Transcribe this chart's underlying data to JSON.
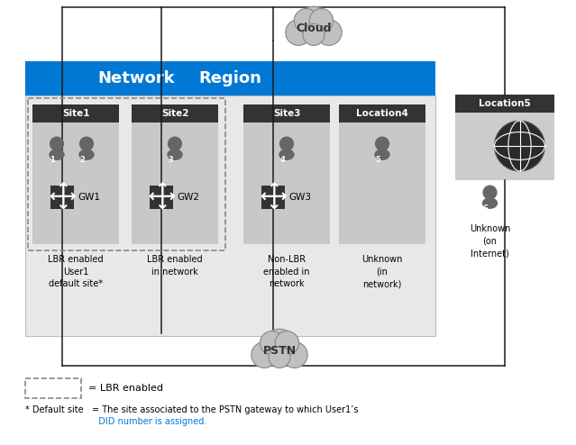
{
  "bg_color": "#ffffff",
  "nr_bg": "#e8e8e8",
  "nr_header_color": "#0078d4",
  "nr_header_text": "#ffffff",
  "site_header_color": "#333333",
  "site_header_text": "#ffffff",
  "site_bg": "#c8c8c8",
  "person_color": "#666666",
  "gw_color": "#333333",
  "gw_arrow_color": "#ffffff",
  "line_color": "#1a1a1a",
  "dashed_color": "#888888",
  "cloud_fill": "#c0c0c0",
  "cloud_edge": "#888888",
  "loc5_bg": "#cccccc",
  "legend_dash_color": "#888888",
  "network_label": "Network",
  "region_label": "Region",
  "sites": [
    "Site1",
    "Site2",
    "Site3",
    "Location4"
  ],
  "site5_label": "Location5",
  "cloud_top_label": "Cloud",
  "cloud_bot_label": "PSTN",
  "gw_labels": [
    "GW1",
    "GW2",
    "GW3"
  ],
  "site_descs": [
    "LBR enabled\nUser1\ndefault site*",
    "LBR enabled\nin network",
    "Non-LBR\nenabled in\nnetwork",
    "Unknown\n(in\nnetwork)"
  ],
  "loc5_desc": "Unknown\n(on\nInternet)",
  "legend_text": "= LBR enabled",
  "fn1": "* Default site   = The site associated to the PSTN gateway to which User1’s",
  "fn2": "                          DID number is assigned.",
  "fn2_color": "#0078d4"
}
